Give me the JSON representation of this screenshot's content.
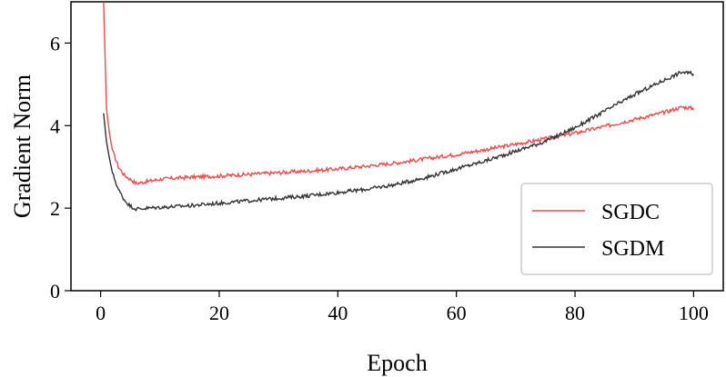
{
  "chart_data": {
    "type": "line",
    "xlabel": "Epoch",
    "ylabel": "Gradient Norm",
    "xlim": [
      -5,
      105
    ],
    "ylim": [
      0,
      7
    ],
    "xticks": [
      0,
      20,
      40,
      60,
      80,
      100
    ],
    "yticks": [
      0,
      2,
      4,
      6
    ],
    "grid": false,
    "legend_position": "lower-right",
    "series": [
      {
        "name": "SGDC",
        "color": "#f04a4a",
        "x": [
          0.5,
          1,
          1.5,
          2,
          3,
          4,
          5,
          6,
          8,
          10,
          15,
          20,
          25,
          30,
          35,
          40,
          45,
          50,
          55,
          60,
          65,
          70,
          75,
          80,
          85,
          90,
          95,
          98,
          100
        ],
        "y": [
          7.0,
          4.4,
          3.8,
          3.4,
          3.0,
          2.8,
          2.7,
          2.6,
          2.65,
          2.7,
          2.75,
          2.78,
          2.82,
          2.86,
          2.9,
          2.95,
          3.02,
          3.1,
          3.2,
          3.3,
          3.42,
          3.55,
          3.68,
          3.82,
          3.98,
          4.15,
          4.32,
          4.45,
          4.42
        ]
      },
      {
        "name": "SGDM",
        "color": "#333333",
        "x": [
          0.5,
          1,
          1.5,
          2,
          3,
          4,
          5,
          6,
          8,
          10,
          15,
          20,
          25,
          30,
          35,
          40,
          45,
          50,
          55,
          60,
          65,
          70,
          75,
          80,
          85,
          90,
          95,
          98,
          100
        ],
        "y": [
          4.3,
          3.6,
          3.2,
          2.85,
          2.45,
          2.2,
          2.05,
          1.98,
          2.0,
          2.02,
          2.06,
          2.12,
          2.18,
          2.24,
          2.3,
          2.38,
          2.46,
          2.58,
          2.75,
          2.95,
          3.15,
          3.38,
          3.62,
          3.95,
          4.35,
          4.75,
          5.1,
          5.3,
          5.25
        ]
      }
    ]
  }
}
